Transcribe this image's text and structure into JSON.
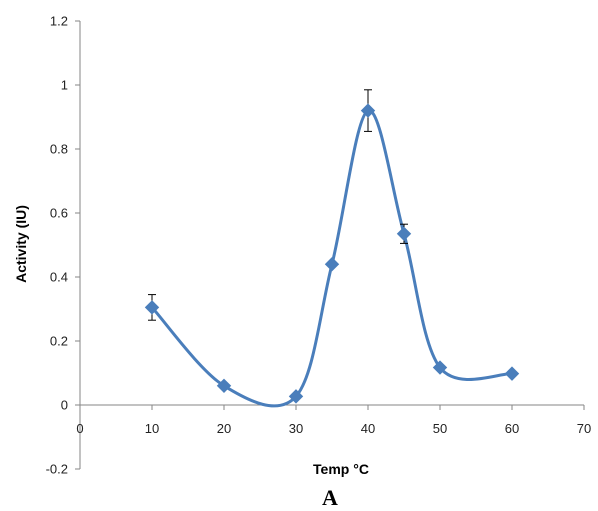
{
  "chart_data": {
    "type": "scatter",
    "xlabel": "Temp °C",
    "ylabel": "Activity (IU)",
    "panel_label": "A",
    "xlim": [
      0,
      70
    ],
    "ylim": [
      -0.2,
      1.2
    ],
    "xticks": [
      0,
      10,
      20,
      30,
      40,
      50,
      60,
      70
    ],
    "yticks": [
      -0.2,
      0,
      0.2,
      0.4,
      0.6,
      0.8,
      1,
      1.2
    ],
    "xtick_labels": [
      "0",
      "10",
      "20",
      "30",
      "40",
      "50",
      "60",
      "70"
    ],
    "ytick_labels": [
      "-0.2",
      "0",
      "0.2",
      "0.4",
      "0.6",
      "0.8",
      "1",
      "1.2"
    ],
    "grid": false,
    "legend": "none",
    "line_style": "smoothed",
    "marker": "diamond",
    "color": "#4a7ebb",
    "series": [
      {
        "x": [
          10,
          20,
          30,
          35,
          40,
          45,
          50,
          60
        ],
        "y": [
          0.305,
          0.06,
          0.027,
          0.44,
          0.92,
          0.535,
          0.117,
          0.098
        ],
        "error": [
          0.04,
          null,
          null,
          null,
          0.065,
          0.03,
          null,
          null
        ]
      }
    ]
  }
}
